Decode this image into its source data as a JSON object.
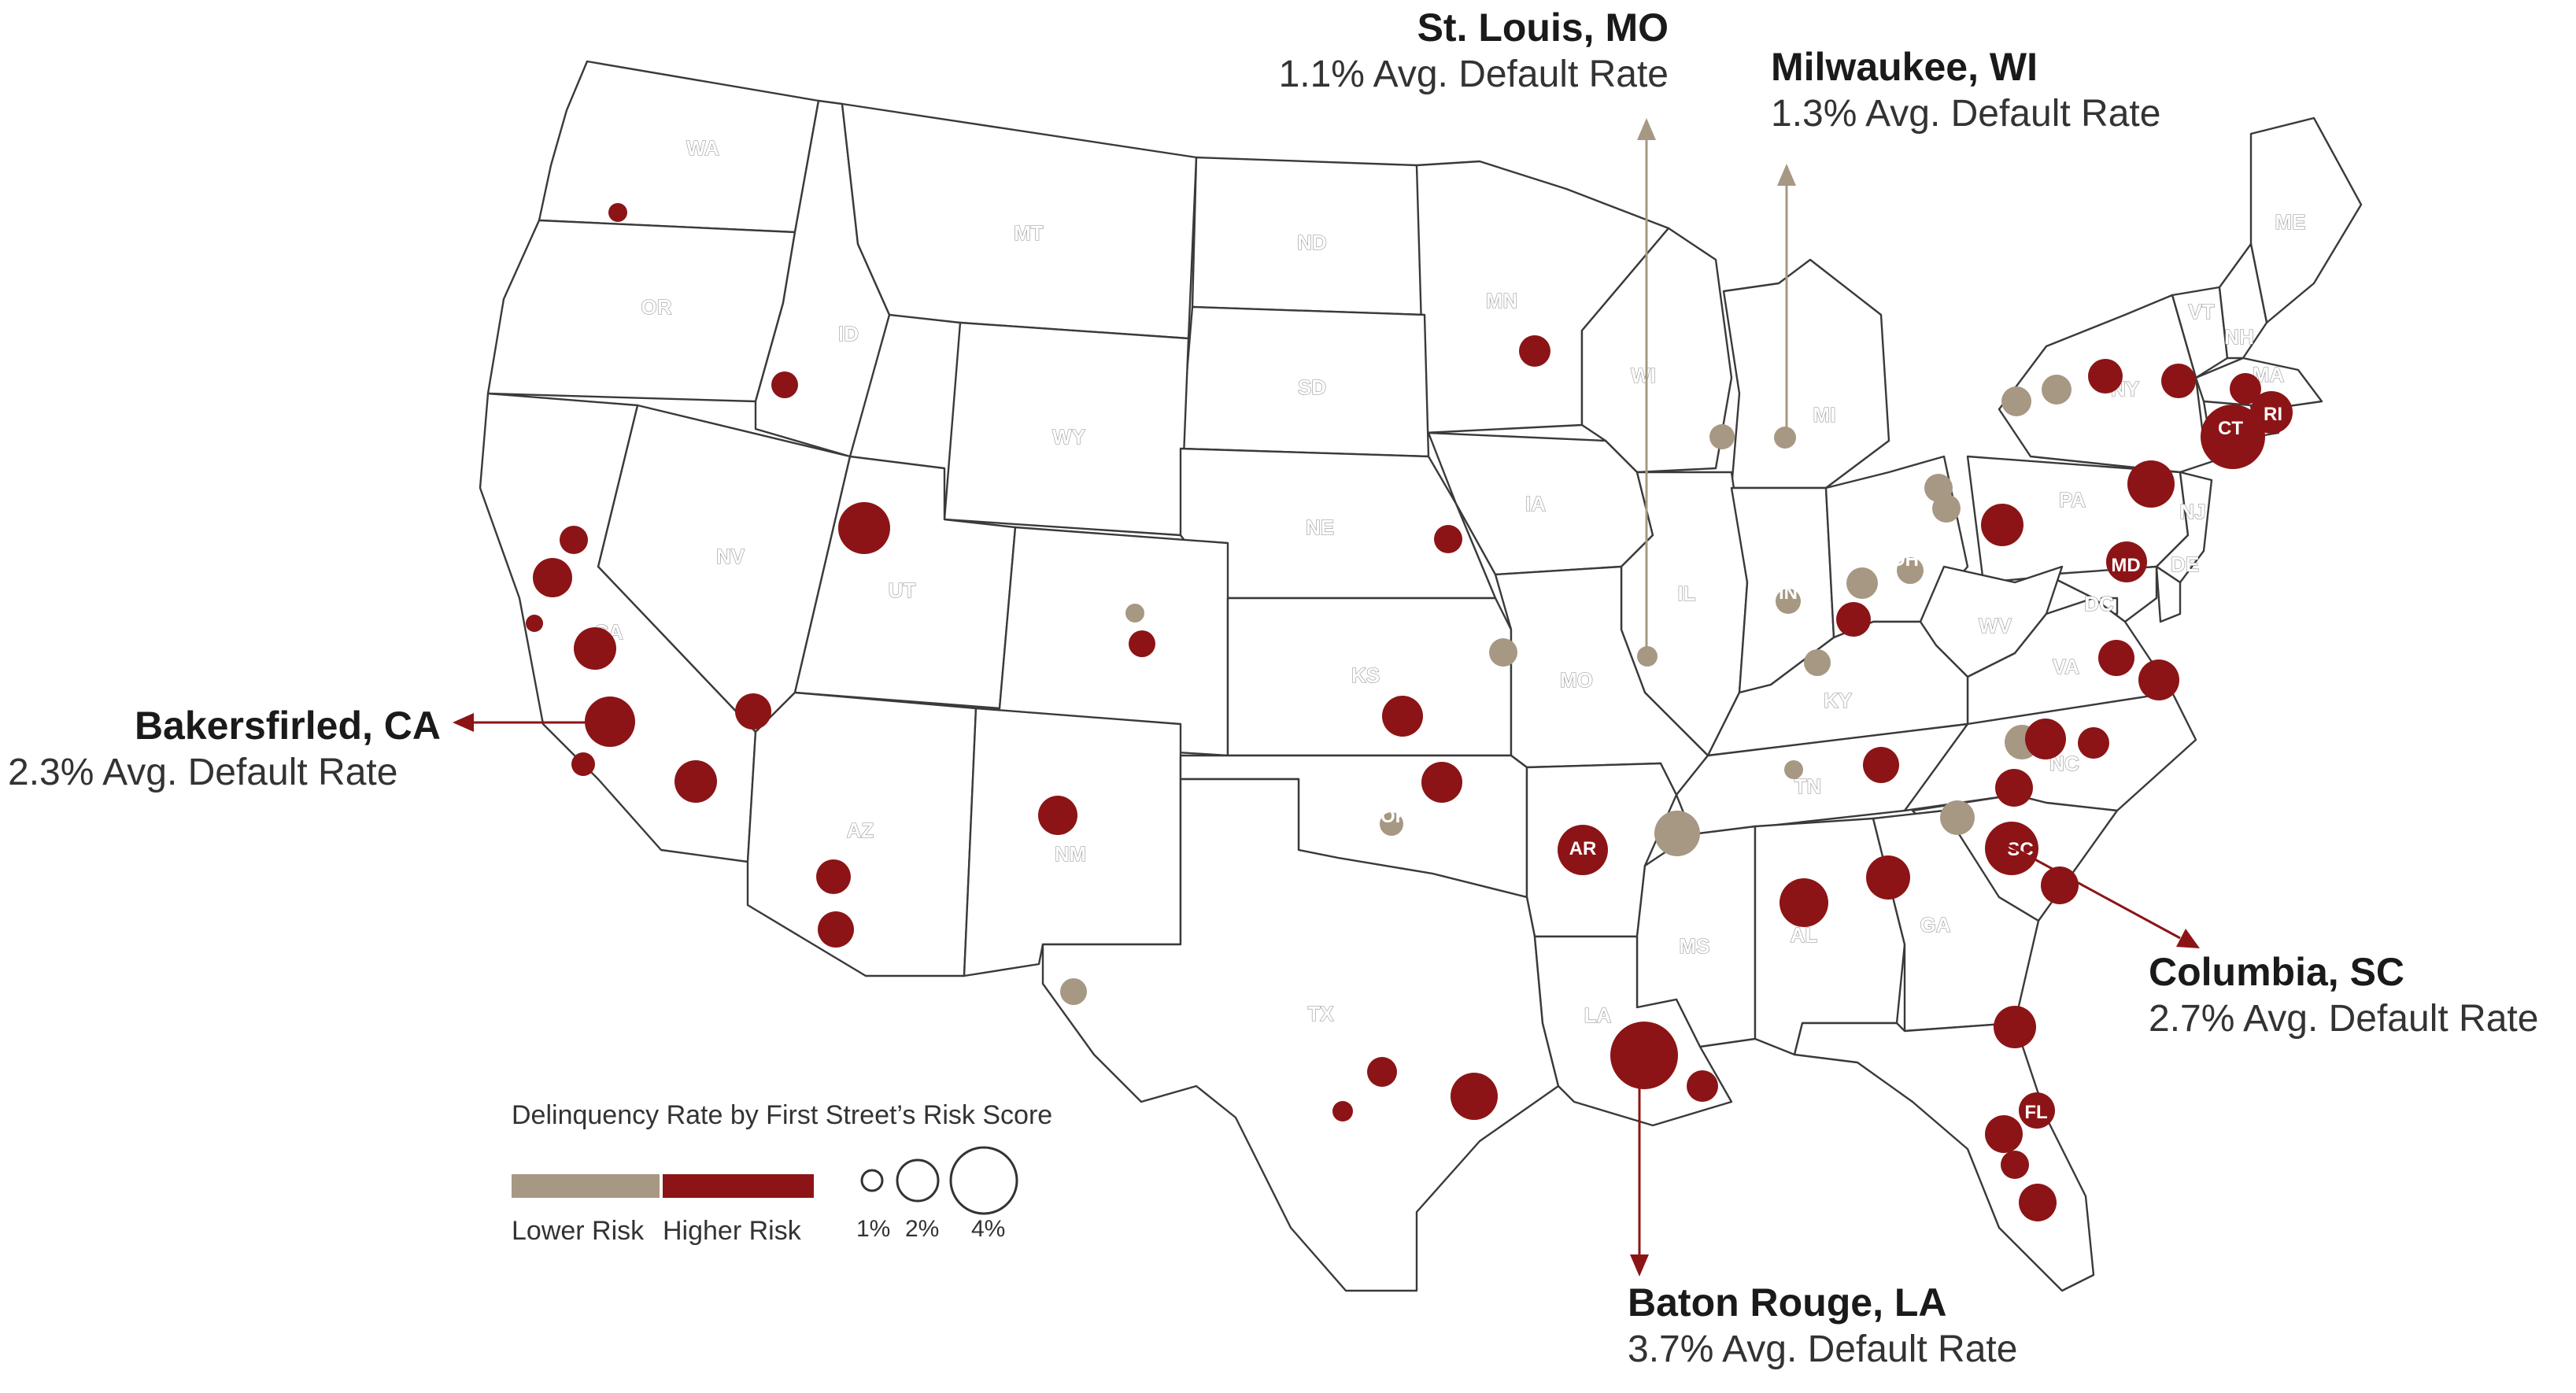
{
  "colors": {
    "lower": "#a69883",
    "higher": "#8c1416"
  },
  "states": [
    "WA",
    "OR",
    "ID",
    "MT",
    "ND",
    "MN",
    "WI",
    "MI",
    "ME",
    "VT",
    "NH",
    "MA",
    "NY",
    "RI",
    "CT",
    "SD",
    "WY",
    "NV",
    "CA",
    "UT",
    "NE",
    "IA",
    "IL",
    "IN",
    "OH",
    "PA",
    "NJ",
    "MD",
    "DE",
    "DC",
    "CO",
    "KS",
    "MO",
    "WV",
    "VA",
    "KY",
    "NC",
    "AZ",
    "NM",
    "OK",
    "AR",
    "TN",
    "SC",
    "TX",
    "MS",
    "AL",
    "GA",
    "LA",
    "FL"
  ],
  "callouts": {
    "st_louis": {
      "city": "St. Louis, MO",
      "rate": "1.1% Avg. Default Rate"
    },
    "milwaukee": {
      "city": "Milwaukee, WI",
      "rate": "1.3% Avg. Default Rate"
    },
    "bakersfield": {
      "city": "Bakersfirled, CA",
      "rate": "2.3% Avg. Default Rate"
    },
    "columbia": {
      "city": "Columbia, SC",
      "rate": "2.7% Avg. Default Rate"
    },
    "baton_rouge": {
      "city": "Baton Rouge, LA",
      "rate": "3.7% Avg. Default Rate"
    }
  },
  "legend": {
    "title": "Delinquency Rate by First Street’s Risk Score",
    "lower": "Lower Risk",
    "higher": "Higher Risk",
    "sizes": [
      "1%",
      "2%",
      "4%"
    ]
  }
}
